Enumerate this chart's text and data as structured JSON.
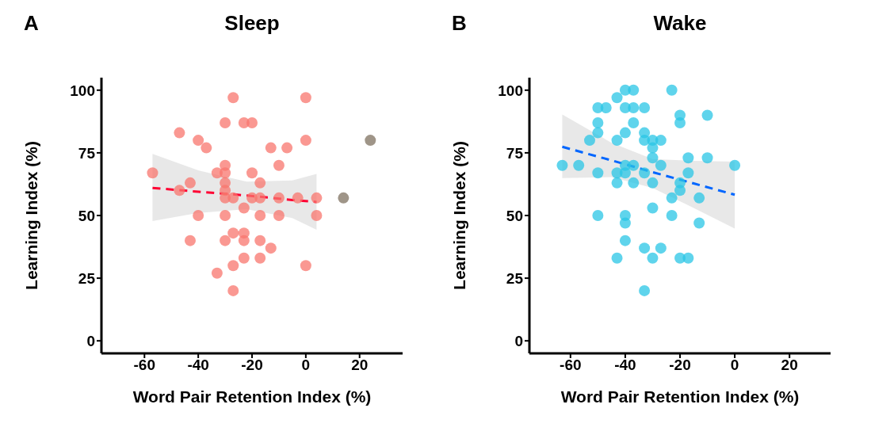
{
  "chart_data": [
    {
      "type": "scatter",
      "title": "Sleep",
      "annotations": [
        "A"
      ],
      "xlabel": "Word Pair Retention Index (%)",
      "ylabel": "Learning Index (%)",
      "xlim": [
        -76,
        36
      ],
      "xticks": [
        -60,
        -40,
        -20,
        0,
        20
      ],
      "ylim": [
        -5,
        105
      ],
      "yticks": [
        0,
        25,
        50,
        75,
        100
      ],
      "series": [
        {
          "marker": "circle",
          "color": "#f8766d",
          "x": [
            -27,
            0,
            -30,
            -23,
            -20,
            -47,
            -40,
            0,
            -37,
            -13,
            -7,
            -30,
            -10,
            -57,
            -33,
            -30,
            -20,
            -43,
            -30,
            -17,
            -47,
            -30,
            -30,
            -27,
            -20,
            -17,
            -10,
            -3,
            4,
            -23,
            -40,
            -30,
            -17,
            -10,
            4,
            -27,
            -23,
            -43,
            -30,
            -23,
            -17,
            -13,
            -23,
            -17,
            -33,
            -27,
            0,
            -27
          ],
          "values": [
            97,
            97,
            87,
            87,
            87,
            83,
            80,
            80,
            77,
            77,
            77,
            70,
            70,
            67,
            67,
            67,
            67,
            63,
            63,
            63,
            60,
            60,
            57,
            57,
            57,
            57,
            57,
            57,
            57,
            53,
            50,
            50,
            50,
            50,
            50,
            43,
            43,
            40,
            40,
            40,
            40,
            37,
            33,
            33,
            27,
            30,
            30,
            20
          ]
        },
        {
          "marker": "circle",
          "color": "#7f7160",
          "x": [
            14,
            24
          ],
          "values": [
            57,
            80
          ]
        },
        {
          "type": "line",
          "marker": "none",
          "line_style": "dashed",
          "color": "#ff0033",
          "x": [
            -57,
            -40,
            -22,
            -5,
            4
          ],
          "values": [
            61,
            59.5,
            58,
            56.2,
            55.4
          ],
          "lower": [
            47.8,
            51,
            52.5,
            49,
            44.3
          ],
          "upper": [
            74.6,
            68,
            63.5,
            64,
            66.6
          ]
        }
      ]
    },
    {
      "type": "scatter",
      "title": "Wake",
      "annotations": [
        "B"
      ],
      "xlabel": "Word Pair Retention Index (%)",
      "ylabel": "Learning Index (%)",
      "xlim": [
        -75,
        35
      ],
      "xticks": [
        -60,
        -40,
        -20,
        0,
        20
      ],
      "ylim": [
        -5,
        105
      ],
      "yticks": [
        0,
        25,
        50,
        75,
        100
      ],
      "series": [
        {
          "marker": "circle",
          "color": "#29c5e6",
          "x": [
            -40,
            -37,
            -23,
            -43,
            -50,
            -47,
            -40,
            -37,
            -33,
            -20,
            -10,
            -50,
            -37,
            -20,
            -50,
            -40,
            -33,
            -53,
            -43,
            -33,
            -30,
            -27,
            -30,
            -30,
            -17,
            -10,
            -63,
            -57,
            -40,
            -37,
            -27,
            0,
            -50,
            -43,
            -40,
            -33,
            -17,
            -43,
            -37,
            -30,
            -20,
            -20,
            -23,
            -13,
            -30,
            -50,
            -40,
            -23,
            -40,
            -13,
            -40,
            -33,
            -27,
            -43,
            -30,
            -20,
            -17,
            -33
          ],
          "values": [
            100,
            100,
            100,
            97,
            93,
            93,
            93,
            93,
            93,
            90,
            90,
            87,
            87,
            87,
            83,
            83,
            83,
            80,
            80,
            80,
            80,
            80,
            77,
            73,
            73,
            73,
            70,
            70,
            70,
            70,
            70,
            70,
            67,
            67,
            67,
            67,
            67,
            63,
            63,
            63,
            63,
            60,
            57,
            57,
            53,
            50,
            50,
            50,
            47,
            47,
            40,
            37,
            37,
            33,
            33,
            33,
            33,
            20
          ]
        },
        {
          "type": "line",
          "marker": "none",
          "line_style": "dashed",
          "color": "#0066ff",
          "x": [
            -63,
            -45,
            -30,
            -15,
            0
          ],
          "values": [
            77.4,
            72,
            67.3,
            62.8,
            58.3
          ],
          "lower": [
            64.9,
            65.3,
            61,
            53,
            44.8
          ],
          "upper": [
            90.3,
            79,
            72.5,
            71.8,
            71.5
          ]
        }
      ]
    }
  ]
}
